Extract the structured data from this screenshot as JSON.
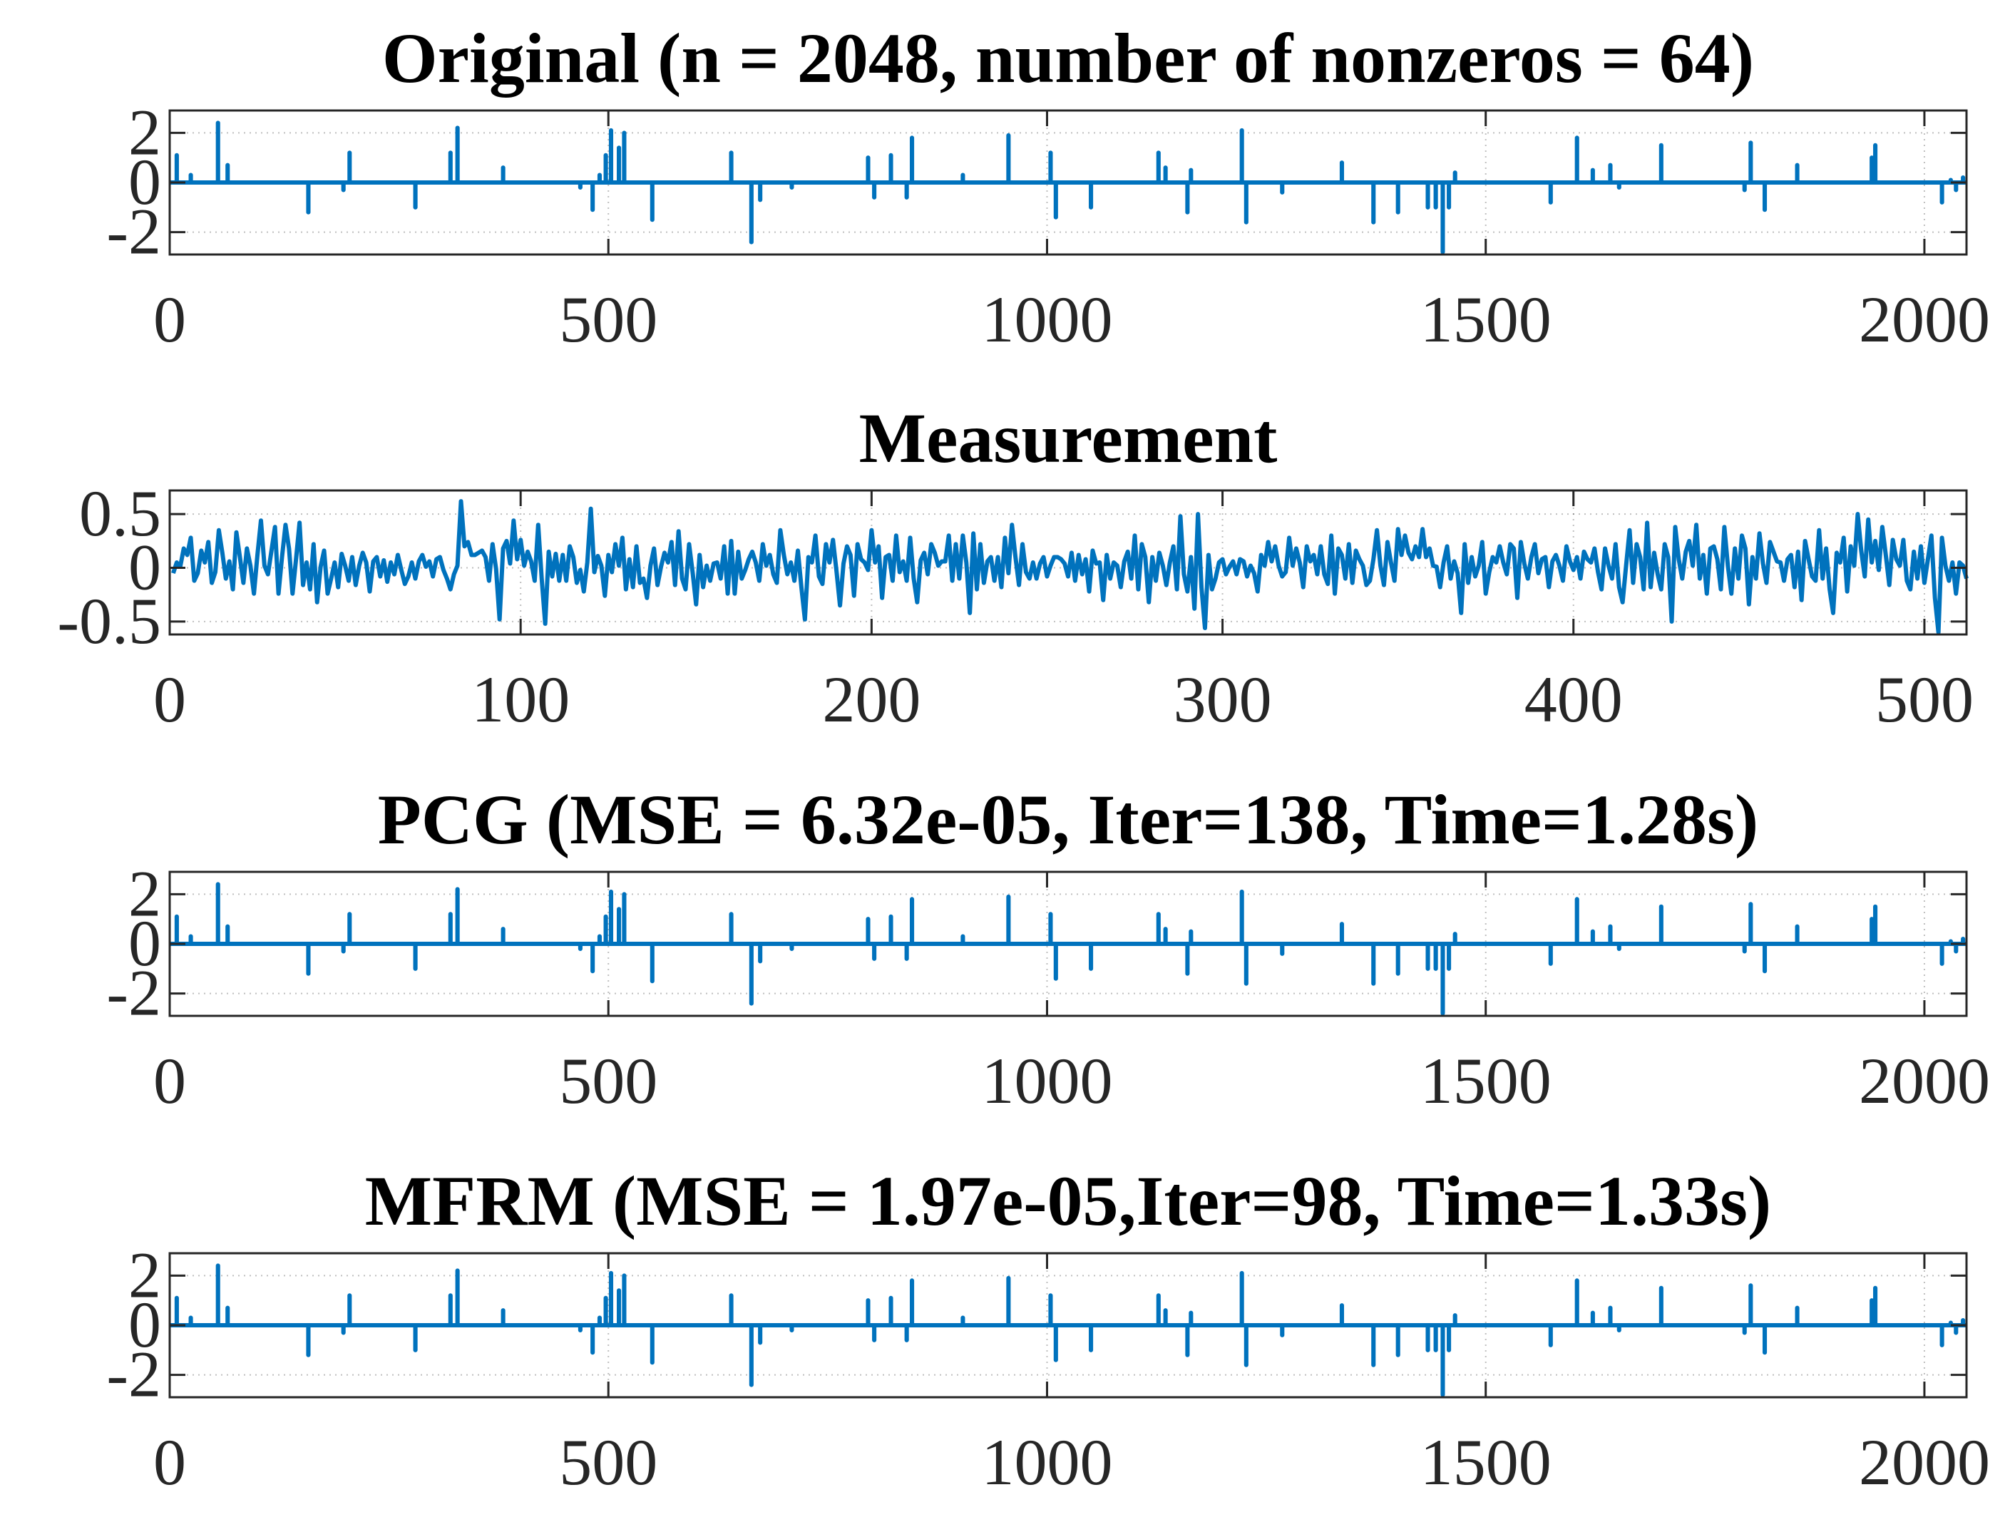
{
  "chart_data": [
    {
      "type": "stem-line",
      "title": "Original (n = 2048, number of nonzeros = 64)",
      "xlim": [
        0,
        2048
      ],
      "ylim": [
        -2.9,
        2.9
      ],
      "xticks": [
        0,
        500,
        1000,
        1500,
        2000
      ],
      "yticks": [
        2,
        0,
        -2
      ],
      "ytick_labels": [
        "2",
        "0",
        "-2"
      ],
      "n": 2048,
      "spikes": [
        [
          8,
          1.1
        ],
        [
          24,
          0.3
        ],
        [
          55,
          2.4
        ],
        [
          66,
          0.7
        ],
        [
          158,
          -1.2
        ],
        [
          198,
          -0.3
        ],
        [
          205,
          1.2
        ],
        [
          280,
          -1.0
        ],
        [
          320,
          1.2
        ],
        [
          328,
          2.2
        ],
        [
          380,
          0.6
        ],
        [
          468,
          -0.2
        ],
        [
          482,
          -1.1
        ],
        [
          490,
          0.3
        ],
        [
          497,
          1.1
        ],
        [
          503,
          2.1
        ],
        [
          512,
          1.4
        ],
        [
          518,
          2.0
        ],
        [
          550,
          -1.5
        ],
        [
          640,
          1.2
        ],
        [
          663,
          -2.4
        ],
        [
          673,
          -0.7
        ],
        [
          709,
          -0.2
        ],
        [
          796,
          1.0
        ],
        [
          803,
          -0.6
        ],
        [
          822,
          1.1
        ],
        [
          840,
          -0.6
        ],
        [
          846,
          1.8
        ],
        [
          904,
          0.3
        ],
        [
          956,
          1.9
        ],
        [
          1004,
          1.2
        ],
        [
          1010,
          -1.4
        ],
        [
          1050,
          -1.0
        ],
        [
          1127,
          1.2
        ],
        [
          1135,
          0.6
        ],
        [
          1160,
          -1.2
        ],
        [
          1164,
          0.5
        ],
        [
          1222,
          2.1
        ],
        [
          1227,
          -1.6
        ],
        [
          1268,
          -0.4
        ],
        [
          1336,
          0.8
        ],
        [
          1372,
          -1.6
        ],
        [
          1400,
          -1.2
        ],
        [
          1434,
          -1.0
        ],
        [
          1443,
          -1.0
        ],
        [
          1451,
          -2.8
        ],
        [
          1458,
          -1.0
        ],
        [
          1465,
          0.4
        ],
        [
          1574,
          -0.8
        ],
        [
          1604,
          1.8
        ],
        [
          1622,
          0.5
        ],
        [
          1642,
          0.7
        ],
        [
          1652,
          -0.2
        ],
        [
          1700,
          1.5
        ],
        [
          1795,
          -0.3
        ],
        [
          1802,
          1.6
        ],
        [
          1818,
          -1.1
        ],
        [
          1855,
          0.7
        ],
        [
          1940,
          1.0
        ],
        [
          1944,
          1.5
        ],
        [
          2020,
          -0.8
        ],
        [
          2030,
          0.1
        ],
        [
          2036,
          -0.3
        ],
        [
          2044,
          0.2
        ]
      ]
    },
    {
      "type": "line",
      "title": "Measurement",
      "xlim": [
        0,
        512
      ],
      "ylim": [
        -0.62,
        0.72
      ],
      "xticks": [
        0,
        100,
        200,
        300,
        400,
        500
      ],
      "yticks": [
        0.5,
        0,
        -0.5
      ],
      "ytick_labels": [
        "0.5",
        "0",
        "-0.5"
      ],
      "x_start": 1,
      "values": [
        -0.05,
        0.05,
        0.01,
        0.18,
        0.12,
        0.28,
        -0.12,
        -0.05,
        0.16,
        0.05,
        0.24,
        -0.14,
        -0.04,
        0.35,
        0.14,
        -0.1,
        0.06,
        -0.2,
        0.33,
        0.1,
        -0.14,
        0.18,
        0.02,
        -0.24,
        0.12,
        0.44,
        0.02,
        -0.06,
        0.16,
        0.38,
        -0.24,
        0.1,
        0.4,
        0.18,
        -0.24,
        0.08,
        0.42,
        -0.16,
        0.05,
        -0.2,
        0.22,
        -0.32,
        0.01,
        0.16,
        -0.24,
        -0.1,
        0.05,
        -0.18,
        0.13,
        0.02,
        -0.12,
        0.1,
        -0.16,
        0.02,
        0.14,
        0.05,
        -0.22,
        0.06,
        0.1,
        -0.08,
        0.07,
        -0.13,
        0.05,
        -0.06,
        0.12,
        -0.02,
        -0.15,
        -0.08,
        0.05,
        -0.1,
        0.06,
        0.12,
        0.01,
        0.06,
        -0.08,
        0.08,
        0.1,
        -0.02,
        -0.1,
        -0.2,
        -0.06,
        0.02,
        0.62,
        0.2,
        0.24,
        0.12,
        0.12,
        0.14,
        0.16,
        0.1,
        -0.12,
        0.22,
        -0.01,
        -0.48,
        0.18,
        0.25,
        0.04,
        0.44,
        0.08,
        0.26,
        0.02,
        0.15,
        0.06,
        -0.12,
        0.4,
        -0.1,
        -0.52,
        0.15,
        -0.08,
        0.13,
        -0.12,
        0.12,
        -0.12,
        0.2,
        0.1,
        -0.14,
        -0.02,
        -0.22,
        0.05,
        0.55,
        -0.04,
        0.11,
        0.02,
        -0.26,
        0.12,
        -0.04,
        0.22,
        0.02,
        0.28,
        -0.2,
        0.08,
        -0.18,
        0.2,
        -0.14,
        -0.1,
        -0.28,
        0.02,
        0.18,
        -0.16,
        0.01,
        0.14,
        0.05,
        0.24,
        -0.16,
        0.34,
        -0.1,
        -0.2,
        0.22,
        -0.04,
        -0.34,
        0.12,
        -0.18,
        0.02,
        -0.12,
        0.04,
        0.05,
        -0.1,
        0.2,
        -0.24,
        0.25,
        -0.24,
        0.15,
        -0.1,
        -0.02,
        0.08,
        0.15,
        0.05,
        -0.12,
        0.22,
        0.02,
        0.12,
        -0.06,
        -0.14,
        0.35,
        0.12,
        -0.06,
        0.05,
        -0.12,
        0.16,
        -0.18,
        -0.48,
        0.1,
        0.05,
        0.3,
        -0.08,
        -0.15,
        0.22,
        0.05,
        0.26,
        -0.03,
        -0.35,
        0.04,
        0.2,
        0.12,
        -0.26,
        0.22,
        0.08,
        0.05,
        -0.02,
        0.35,
        0.05,
        0.2,
        -0.28,
        0.1,
        0.12,
        -0.12,
        0.3,
        -0.04,
        0.06,
        -0.12,
        0.28,
        -0.1,
        -0.32,
        0.07,
        0.14,
        -0.06,
        0.22,
        0.14,
        0.02,
        0.06,
        0.06,
        0.3,
        -0.12,
        0.22,
        -0.1,
        0.3,
        0.05,
        -0.42,
        0.32,
        -0.2,
        0.22,
        -0.14,
        0.06,
        0.1,
        -0.12,
        0.1,
        -0.18,
        0.28,
        -0.05,
        0.4,
        0.1,
        -0.16,
        0.22,
        -0.04,
        -0.1,
        0.05,
        -0.1,
        0.04,
        0.1,
        -0.08,
        0.02,
        0.1,
        0.1,
        0.08,
        0.04,
        -0.08,
        0.14,
        -0.12,
        0.12,
        -0.06,
        0.08,
        -0.22,
        0.16,
        0.04,
        0.05,
        -0.3,
        0.12,
        -0.1,
        0.05,
        0.02,
        -0.18,
        0.06,
        0.15,
        -0.1,
        0.3,
        -0.2,
        0.22,
        0.1,
        -0.32,
        0.1,
        -0.12,
        0.14,
        0.02,
        -0.16,
        0.05,
        0.2,
        -0.2,
        0.48,
        -0.06,
        -0.22,
        0.1,
        -0.38,
        0.5,
        -0.18,
        -0.56,
        0.12,
        -0.2,
        -0.1,
        0.05,
        0.08,
        -0.06,
        0.01,
        0.06,
        -0.06,
        0.08,
        0.06,
        -0.08,
        0.02,
        -0.05,
        -0.22,
        0.12,
        0.02,
        0.24,
        0.06,
        0.2,
        0.02,
        -0.08,
        -0.04,
        0.28,
        0.02,
        0.18,
        0.05,
        -0.18,
        0.2,
        0.06,
        0.12,
        -0.06,
        0.2,
        -0.06,
        -0.15,
        0.3,
        -0.24,
        0.18,
        0.12,
        -0.1,
        0.22,
        -0.14,
        0.16,
        0.08,
        0.02,
        -0.16,
        -0.12,
        0.08,
        0.35,
        0.02,
        -0.16,
        0.24,
        0.05,
        -0.12,
        0.36,
        0.12,
        0.3,
        0.14,
        0.08,
        0.2,
        0.1,
        0.36,
        0.1,
        0.18,
        0.02,
        0.01,
        -0.18,
        0.05,
        0.2,
        -0.1,
        0.06,
        -0.05,
        -0.42,
        0.22,
        -0.14,
        0.1,
        -0.08,
        0.02,
        0.24,
        -0.24,
        -0.04,
        0.1,
        0.05,
        0.2,
        0.05,
        -0.06,
        0.22,
        0.18,
        -0.28,
        0.24,
        0.04,
        -0.1,
        0.1,
        0.22,
        -0.05,
        0.08,
        0.1,
        -0.18,
        0.06,
        0.12,
        0.02,
        -0.12,
        0.2,
        0.06,
        -0.02,
        0.1,
        -0.1,
        0.15,
        0.08,
        0.05,
        0.18,
        -0.04,
        -0.2,
        0.18,
        0.02,
        -0.1,
        0.22,
        -0.18,
        -0.32,
        0.02,
        0.35,
        -0.14,
        0.22,
        0.1,
        -0.2,
        0.42,
        -0.18,
        0.14,
        -0.06,
        -0.2,
        0.22,
        0.1,
        -0.5,
        0.38,
        0.08,
        -0.1,
        0.15,
        0.25,
        0.02,
        0.4,
        -0.1,
        0.12,
        -0.24,
        0.18,
        0.2,
        0.08,
        -0.2,
        0.38,
        0.02,
        -0.24,
        0.18,
        -0.1,
        0.3,
        0.18,
        -0.34,
        0.1,
        -0.1,
        0.32,
        0.04,
        -0.14,
        0.24,
        0.15,
        0.06,
        0.05,
        -0.12,
        0.08,
        0.12,
        -0.18,
        0.15,
        -0.3,
        0.25,
        0.08,
        -0.08,
        -0.12,
        0.35,
        -0.1,
        0.18,
        -0.2,
        -0.42,
        0.14,
        0.05,
        0.28,
        -0.22,
        0.2,
        0.02,
        0.5,
        0.16,
        -0.08,
        0.45,
        0.05,
        0.25,
        -0.02,
        0.38,
        0.12,
        -0.16,
        0.26,
        0.08,
        0.02,
        0.26,
        -0.12,
        -0.2,
        0.15,
        -0.1,
        0.2,
        -0.14,
        0.08,
        0.3,
        -0.28,
        -0.6,
        0.28,
        0.02,
        -0.12,
        0.05,
        -0.24,
        0.05,
        0.02,
        -0.1
      ]
    },
    {
      "type": "stem-line",
      "title": "PCG (MSE = 6.32e-05, Iter=138, Time=1.28s)",
      "xlim": [
        0,
        2048
      ],
      "ylim": [
        -2.9,
        2.9
      ],
      "xticks": [
        0,
        500,
        1000,
        1500,
        2000
      ],
      "yticks": [
        2,
        0,
        -2
      ],
      "ytick_labels": [
        "2",
        "0",
        "-2"
      ],
      "n": 2048,
      "same_as_original": true
    },
    {
      "type": "stem-line",
      "title": "MFRM (MSE = 1.97e-05,Iter=98, Time=1.33s)",
      "xlim": [
        0,
        2048
      ],
      "ylim": [
        -2.9,
        2.9
      ],
      "xticks": [
        0,
        500,
        1000,
        1500,
        2000
      ],
      "yticks": [
        2,
        0,
        -2
      ],
      "ytick_labels": [
        "2",
        "0",
        "-2"
      ],
      "n": 2048,
      "same_as_original": true
    }
  ],
  "colors": {
    "line": "#0072BD",
    "axis": "#262626",
    "grid": "#000000",
    "title": "#000000"
  }
}
